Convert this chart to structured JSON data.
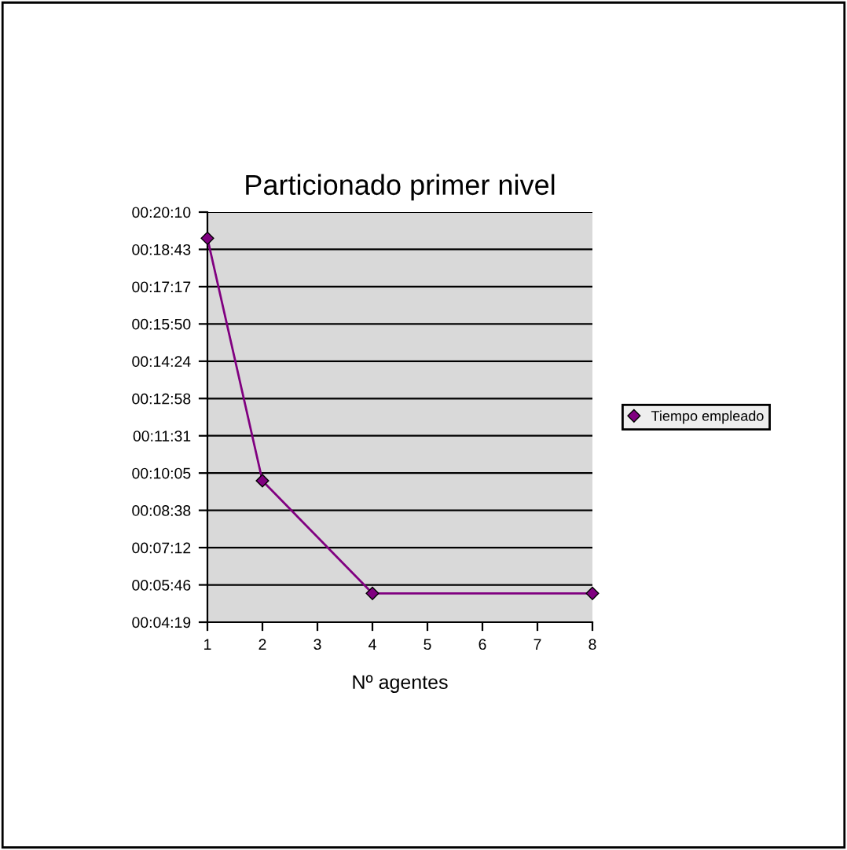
{
  "chart_data": {
    "type": "line",
    "title": "Particionado primer nivel",
    "xlabel": "Nº agentes",
    "x": [
      1,
      2,
      4,
      8
    ],
    "series": [
      {
        "name": "Tiempo empleado",
        "color": "#800080",
        "values": [
          1149,
          587,
          326,
          326
        ]
      }
    ],
    "xlim": [
      1,
      8
    ],
    "xticks": [
      1,
      2,
      3,
      4,
      5,
      6,
      7,
      8
    ],
    "ylim": [
      259.2,
      1209.6
    ],
    "yticks": [
      {
        "value": 259.2,
        "label": "00:04:19"
      },
      {
        "value": 345.6,
        "label": "00:05:46"
      },
      {
        "value": 432,
        "label": "00:07:12"
      },
      {
        "value": 518.4,
        "label": "00:08:38"
      },
      {
        "value": 604.8,
        "label": "00:10:05"
      },
      {
        "value": 691.2,
        "label": "00:11:31"
      },
      {
        "value": 777.6,
        "label": "00:12:58"
      },
      {
        "value": 864,
        "label": "00:14:24"
      },
      {
        "value": 950.4,
        "label": "00:15:50"
      },
      {
        "value": 1036.8,
        "label": "00:17:17"
      },
      {
        "value": 1123.2,
        "label": "00:18:43"
      },
      {
        "value": 1209.6,
        "label": "00:20:10"
      }
    ],
    "grid": "y",
    "legend": "right",
    "marker": "diamond",
    "line_style": "solid"
  }
}
